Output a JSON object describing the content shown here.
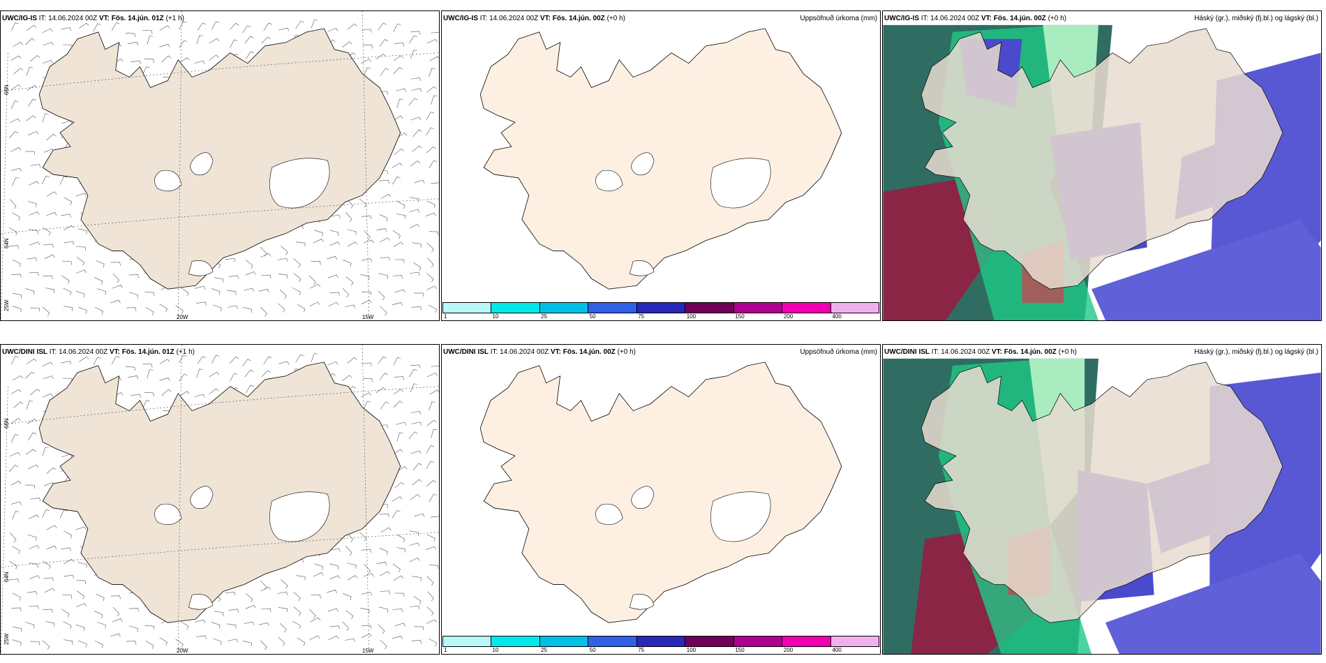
{
  "panels": [
    {
      "model": "UWC/IG-IS",
      "it": "IT: 14.06.2024 00Z",
      "vt": "VT: Fös. 14.jún. 01Z",
      "offset": "(+1 h)",
      "right": ""
    },
    {
      "model": "UWC/IG-IS",
      "it": "IT: 14.06.2024 00Z",
      "vt": "VT: Fös. 14.jún. 00Z",
      "offset": "(+0 h)",
      "right": "Uppsöfnuð úrkoma (mm)"
    },
    {
      "model": "UWC/IG-IS",
      "it": "IT: 14.06.2024 00Z",
      "vt": "VT: Fös. 14.jún. 00Z",
      "offset": "(+0 h)",
      "right": "Háský (gr.), miðský (fj.bl.) og lágský (bl.)"
    },
    {
      "model": "UWC/DINI ISL",
      "it": "IT: 14.06.2024 00Z",
      "vt": "VT: Fös. 14.jún. 01Z",
      "offset": "(+1 h)",
      "right": ""
    },
    {
      "model": "UWC/DINI ISL",
      "it": "IT: 14.06.2024 00Z",
      "vt": "VT: Fös. 14.jún. 00Z",
      "offset": "(+0 h)",
      "right": "Uppsöfnuð úrkoma (mm)"
    },
    {
      "model": "UWC/DINI ISL",
      "it": "IT: 14.06.2024 00Z",
      "vt": "VT: Fös. 14.jún. 00Z",
      "offset": "(+0 h)",
      "right": "Háský (gr.), miðský (fj.bl.) og lágský (bl.)"
    }
  ],
  "grid_labels": {
    "lat1": "66N",
    "lat2": "64N",
    "lon1": "20W",
    "lon2": "15W",
    "lon3": "25W"
  },
  "colorbar": {
    "ticks": [
      "1",
      "10",
      "25",
      "50",
      "75",
      "100",
      "150",
      "200",
      "400"
    ],
    "colors": [
      "#b8f8f8",
      "#00e8e8",
      "#00c0e8",
      "#3060e8",
      "#2828b8",
      "#700058",
      "#b00090",
      "#f000b0",
      "#f0b0f0"
    ]
  },
  "colors": {
    "land_wind": "#efe4d6",
    "land_precip": "#fdf0e2",
    "sea": "#ffffff"
  }
}
